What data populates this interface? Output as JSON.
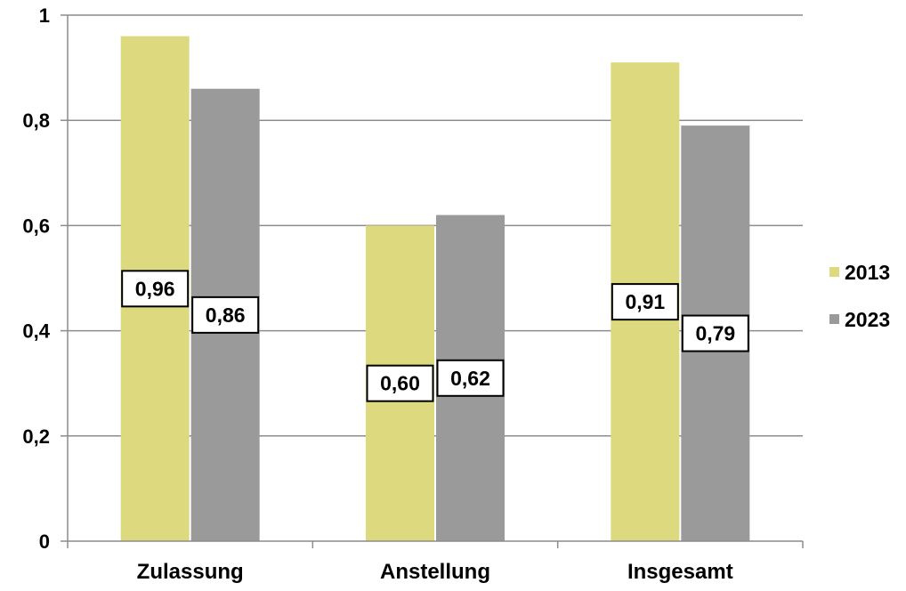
{
  "chart_data": {
    "type": "bar",
    "title": "",
    "xlabel": "",
    "ylabel": "",
    "categories": [
      "Zulassung",
      "Anstellung",
      "Insgesamt"
    ],
    "series": [
      {
        "name": "2013",
        "color": "#dcd97f",
        "values": [
          0.96,
          0.6,
          0.91
        ],
        "labels": [
          "0,96",
          "0,60",
          "0,91"
        ]
      },
      {
        "name": "2023",
        "color": "#9a9a9a",
        "values": [
          0.86,
          0.62,
          0.79
        ],
        "labels": [
          "0,86",
          "0,62",
          "0,79"
        ]
      }
    ],
    "ylim": [
      0,
      1
    ],
    "y_ticks": [
      0,
      0.2,
      0.4,
      0.6,
      0.8,
      1
    ],
    "y_tick_labels": [
      "0",
      "0,2",
      "0,4",
      "0,6",
      "0,8",
      "1"
    ],
    "grid": true,
    "legend_position": "right",
    "data_labels": "inside-bar-boxed"
  }
}
